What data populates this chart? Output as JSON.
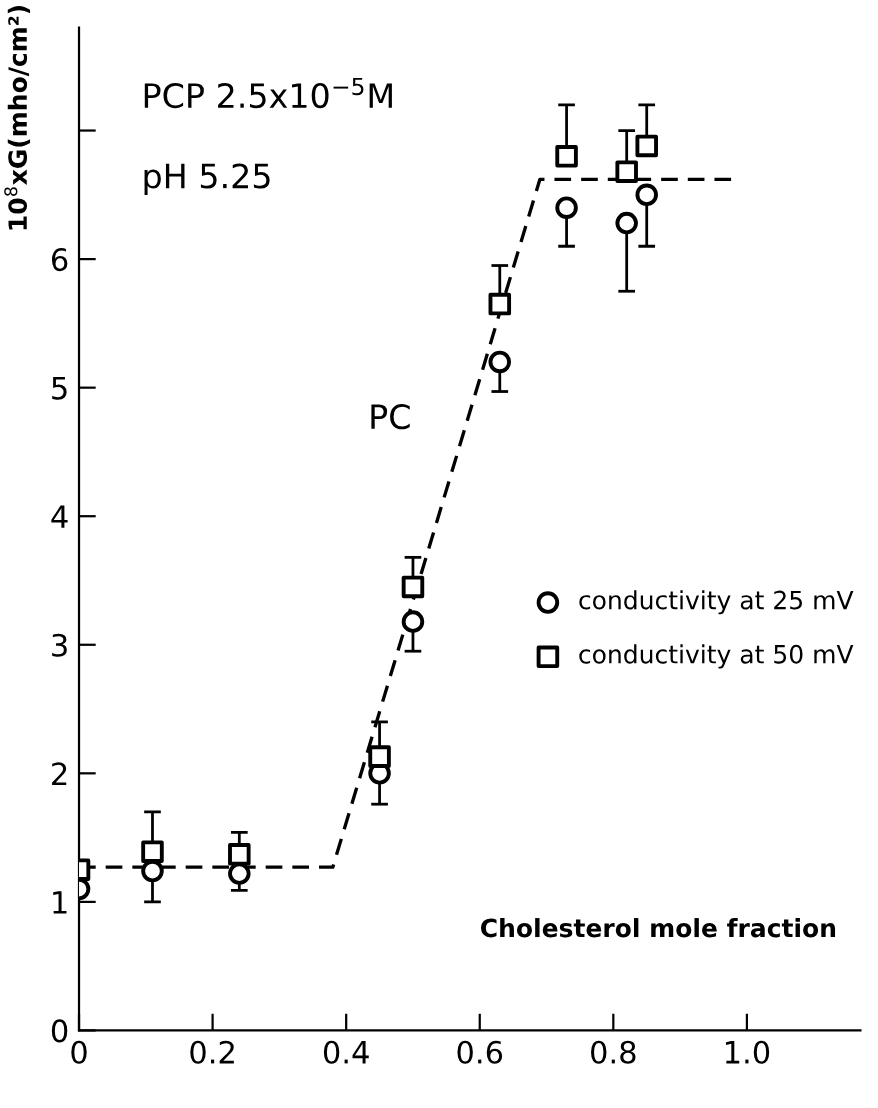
{
  "chart_data": {
    "type": "scatter",
    "xlabel": "Cholesterol mole fraction",
    "ylabel": "10$^{8}$xG(mho/cm²)",
    "annotations": [
      "PCP 2.5x10$^{−5}$M",
      "pH 5.25",
      "PC"
    ],
    "xlim": [
      0,
      1.17
    ],
    "ylim": [
      0,
      7.8
    ],
    "xticks": [
      0,
      0.2,
      0.4,
      0.6,
      0.8,
      {
        "value": 1.0,
        "label": "1.0"
      }
    ],
    "yticks": [
      0,
      1,
      2,
      3,
      4,
      5,
      6,
      {
        "value": 7,
        "label": null
      }
    ],
    "legend": "right",
    "grid": false,
    "series": [
      {
        "name": "conductivity at 25 mV",
        "color": "#000000",
        "marker": "circle",
        "x": [
          0,
          0.11,
          0.24,
          0.45,
          0.5,
          0.63,
          0.73,
          0.82,
          0.85
        ],
        "values": [
          1.1,
          1.24,
          1.22,
          2.0,
          3.18,
          5.2,
          6.4,
          6.28,
          6.5
        ],
        "errors": [
          null,
          [
            1.0,
            1.24
          ],
          [
            1.09,
            1.22
          ],
          [
            1.76,
            2.0
          ],
          [
            2.95,
            3.18
          ],
          [
            4.97,
            5.2
          ],
          [
            6.1,
            6.4
          ],
          [
            5.75,
            6.28
          ],
          [
            6.1,
            6.5
          ]
        ]
      },
      {
        "name": "conductivity at 50 mV",
        "color": "#000000",
        "marker": "square",
        "x": [
          0,
          0.11,
          0.24,
          0.45,
          0.5,
          0.63,
          0.73,
          0.82,
          0.85
        ],
        "values": [
          1.25,
          1.39,
          1.37,
          2.13,
          3.45,
          5.65,
          6.8,
          6.68,
          6.88
        ],
        "errors": [
          null,
          [
            1.39,
            1.7
          ],
          [
            1.37,
            1.54
          ],
          [
            2.13,
            2.4
          ],
          [
            3.45,
            3.68
          ],
          [
            5.65,
            5.95
          ],
          [
            6.8,
            7.2
          ],
          [
            6.68,
            7.0
          ],
          [
            6.88,
            7.2
          ]
        ]
      },
      {
        "type": "line",
        "line_style": "dashed",
        "marker": "none",
        "color": "#000000",
        "x": [
          0,
          0.38,
          0.69,
          0.98
        ],
        "values": [
          1.27,
          1.27,
          6.62,
          6.62
        ]
      }
    ]
  }
}
